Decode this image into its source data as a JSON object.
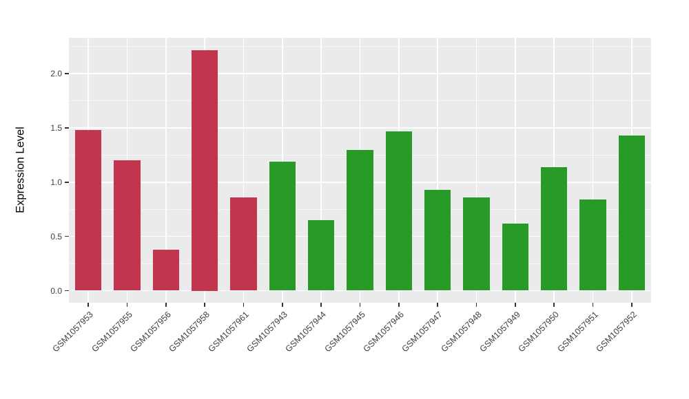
{
  "chart_data": {
    "type": "bar",
    "title": "",
    "xlabel": "",
    "ylabel": "Expression Level",
    "categories": [
      "GSM1057953",
      "GSM1057955",
      "GSM1057956",
      "GSM1057958",
      "GSM1057961",
      "GSM1057943",
      "GSM1057944",
      "GSM1057945",
      "GSM1057946",
      "GSM1057947",
      "GSM1057948",
      "GSM1057949",
      "GSM1057950",
      "GSM1057951",
      "GSM1057952"
    ],
    "values": [
      1.48,
      1.2,
      0.38,
      2.22,
      0.86,
      1.19,
      0.65,
      1.3,
      1.47,
      0.93,
      0.86,
      0.62,
      1.14,
      0.84,
      1.43
    ],
    "bar_colors": [
      "#C2354F",
      "#C2354F",
      "#C2354F",
      "#C2354F",
      "#C2354F",
      "#279A27",
      "#279A27",
      "#279A27",
      "#279A27",
      "#279A27",
      "#279A27",
      "#279A27",
      "#279A27",
      "#279A27",
      "#279A27"
    ],
    "group_palette": {
      "red_group": "#C2354F",
      "green_group": "#279A27"
    },
    "ylim": [
      0,
      2.33
    ],
    "yticks": {
      "major": [
        0,
        0.5,
        1.0,
        1.5,
        2.0
      ],
      "minor": [
        0.25,
        0.75,
        1.25,
        1.75,
        2.25
      ],
      "labels": [
        "0.0",
        "0.5",
        "1.0",
        "1.5",
        "2.0"
      ]
    },
    "grid": "on",
    "legend": "none",
    "panel_background": "#EBEBEB",
    "gridline_color": "#FFFFFF",
    "bar_width_fraction": 0.68
  }
}
